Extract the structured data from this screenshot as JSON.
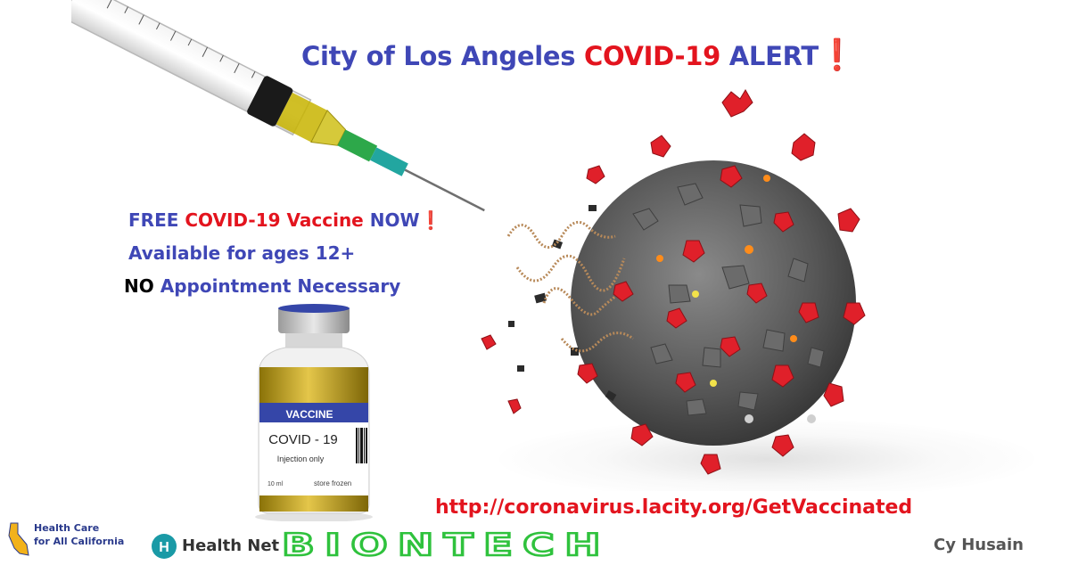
{
  "title": {
    "part1": "City of Los Angeles ",
    "part2": "COVID-19 ",
    "part3": "ALERT",
    "mark": "❗"
  },
  "info": {
    "line1": {
      "a": "FREE ",
      "b": "COVID-19 Vaccine",
      "c": " NOW",
      "mark": "❗"
    },
    "line2": "Available for ages 12+",
    "line3": {
      "a": "NO",
      "b": " Appointment Necessary"
    }
  },
  "vial": {
    "header": "VACCINE",
    "name": "COVID - 19",
    "sub": "Injection only",
    "volume": "10 ml",
    "storage": "store frozen"
  },
  "url": "http://coronavirus.lacity.org/GetVaccinated",
  "logos": {
    "hca_line1": "Health Care",
    "hca_line2": "for All California",
    "healthnet": "Health Net",
    "biontech": "BIONTECH"
  },
  "credit": "Cy Husain",
  "colors": {
    "title_blue": "#3f47b6",
    "alert_red": "#e3141e",
    "biontech_green": "#2fc23d"
  }
}
